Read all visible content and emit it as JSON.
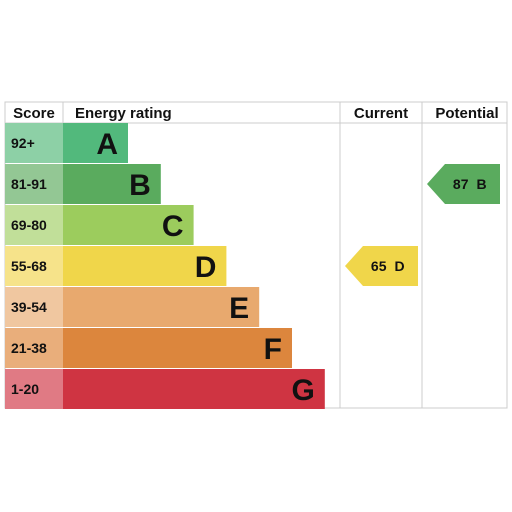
{
  "chart_data": {
    "type": "bar",
    "headers": {
      "score": "Score",
      "energy_rating": "Energy rating",
      "current": "Current",
      "potential": "Potential"
    },
    "bands": [
      {
        "score": "92+",
        "letter": "A",
        "color": "#52b97c",
        "score_bg": "#8dd0a6",
        "value": 1
      },
      {
        "score": "81-91",
        "letter": "B",
        "color": "#5aab5e",
        "score_bg": "#93c794",
        "value": 2
      },
      {
        "score": "69-80",
        "letter": "C",
        "color": "#9ccc5d",
        "score_bg": "#c1df99",
        "value": 3
      },
      {
        "score": "55-68",
        "letter": "D",
        "color": "#f0d64a",
        "score_bg": "#f6e38a",
        "value": 4
      },
      {
        "score": "39-54",
        "letter": "E",
        "color": "#e8a96e",
        "score_bg": "#f0c7a0",
        "value": 5
      },
      {
        "score": "21-38",
        "letter": "F",
        "color": "#dc863d",
        "score_bg": "#e9ae7b",
        "value": 6
      },
      {
        "score": "1-20",
        "letter": "G",
        "color": "#cf3442",
        "score_bg": "#e07a84",
        "value": 7
      }
    ],
    "current": {
      "score": "65",
      "letter": "D",
      "color": "#f0d64a"
    },
    "potential": {
      "score": "87",
      "letter": "B",
      "color": "#5aab5e"
    }
  }
}
